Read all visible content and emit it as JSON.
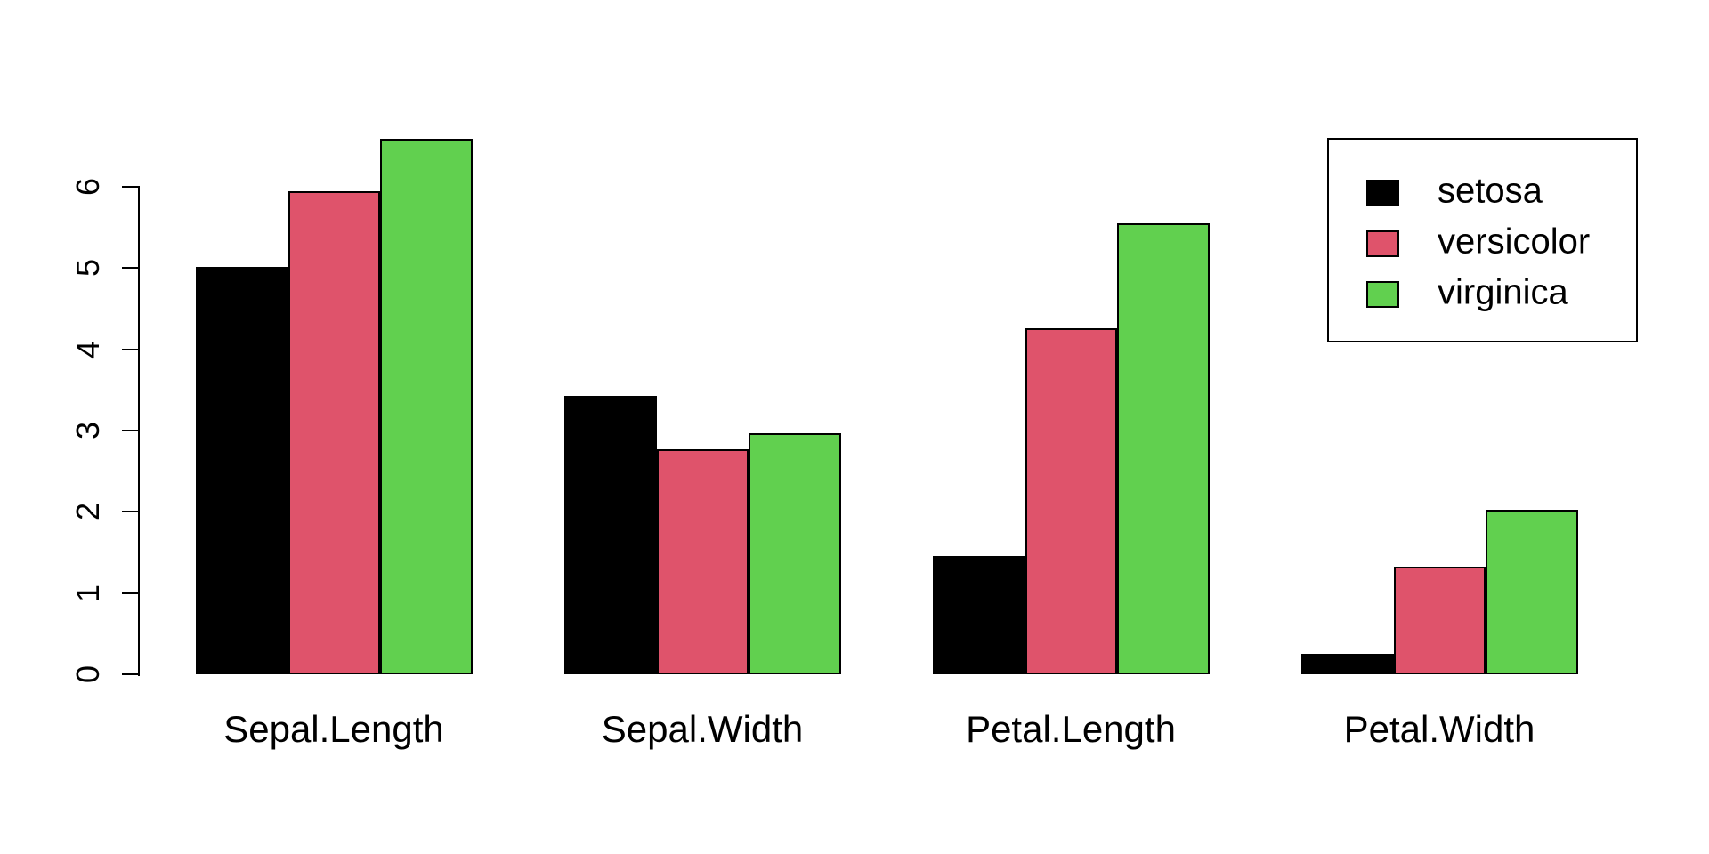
{
  "chart_data": {
    "type": "bar",
    "grouped": true,
    "title": "",
    "xlabel": "",
    "ylabel": "",
    "categories": [
      "Sepal.Length",
      "Sepal.Width",
      "Petal.Length",
      "Petal.Width"
    ],
    "series": [
      {
        "name": "setosa",
        "color": "#000000",
        "values": [
          5.01,
          3.43,
          1.46,
          0.25
        ]
      },
      {
        "name": "versicolor",
        "color": "#DF536B",
        "values": [
          5.94,
          2.77,
          4.26,
          1.33
        ]
      },
      {
        "name": "virginica",
        "color": "#61D04F",
        "values": [
          6.59,
          2.97,
          5.55,
          2.03
        ]
      }
    ],
    "yticks": [
      0,
      1,
      2,
      3,
      4,
      5,
      6
    ],
    "ylim": [
      0,
      6.6
    ],
    "grid": false,
    "legend_position": "top-right",
    "axis_color": "#000000",
    "background_color": "#FFFFFF"
  }
}
